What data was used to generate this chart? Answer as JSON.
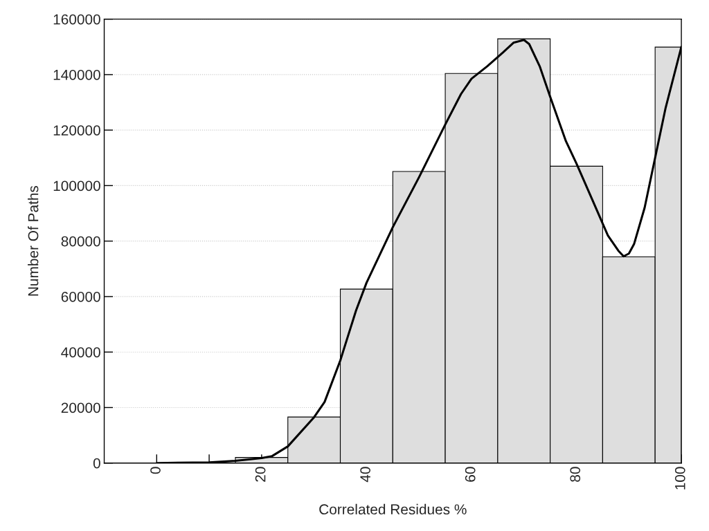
{
  "chart_data": {
    "type": "histogram",
    "xlabel": "Correlated Residues %",
    "ylabel": "Number Of Paths",
    "bins": [
      15,
      25,
      35,
      45,
      55,
      65,
      75,
      85,
      95,
      100
    ],
    "values": [
      2000,
      16600,
      62700,
      105100,
      140400,
      152900,
      107000,
      74300,
      149900
    ],
    "color": "#dedede",
    "series": [
      {
        "type": "line",
        "color": "#000000",
        "x": [
          0,
          10,
          15,
          20,
          22,
          25,
          30,
          32,
          35,
          38,
          40,
          45,
          50,
          55,
          58,
          60,
          63,
          66,
          68,
          70,
          71,
          73,
          75,
          78,
          80,
          83,
          86,
          88,
          89,
          90,
          91,
          93,
          95,
          97,
          100
        ],
        "values": [
          0,
          200,
          800,
          1800,
          2500,
          6000,
          16500,
          22000,
          37000,
          55000,
          65000,
          85000,
          103000,
          122000,
          133000,
          138500,
          143000,
          148000,
          151500,
          152500,
          151000,
          143000,
          132000,
          116000,
          108000,
          95000,
          82000,
          76500,
          74500,
          75500,
          79000,
          92000,
          110000,
          128000,
          150000
        ]
      }
    ],
    "xlim": [
      -10,
      100
    ],
    "ylim": [
      0,
      160000
    ],
    "xticks": [
      0,
      {
        "value": 10,
        "label": null
      },
      20,
      40,
      60,
      80,
      100
    ],
    "yticks": [
      0,
      20000,
      40000,
      60000,
      80000,
      100000,
      120000,
      140000,
      160000
    ],
    "grid": "y",
    "legend": false
  }
}
